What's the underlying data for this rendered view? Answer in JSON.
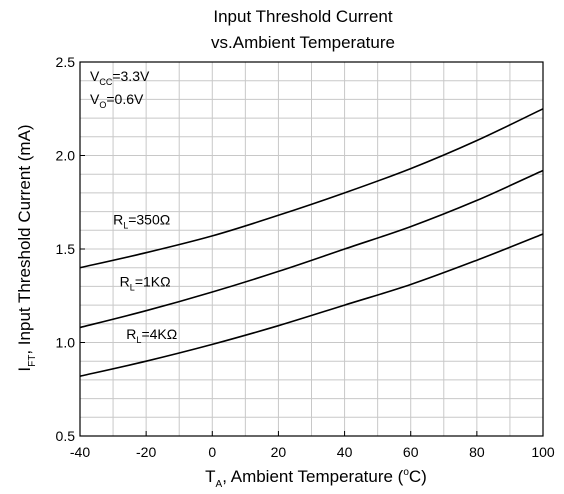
{
  "chart_data": {
    "type": "line",
    "title_line1": "Input Threshold Current",
    "title_line2": "vs.Ambient Temperature",
    "xlabel": {
      "main": "T",
      "sub": "A",
      "rest": ", Ambient Temperature (",
      "sup": "o",
      "end": "C)"
    },
    "ylabel": {
      "main": "I",
      "sub": "FT",
      "rest": ", Input Threshold Current (mA)"
    },
    "xlim": [
      -40,
      100
    ],
    "ylim": [
      0.5,
      2.5
    ],
    "xticks": [
      -40,
      -20,
      0,
      20,
      40,
      60,
      80,
      100
    ],
    "xtick_labels": [
      "-40",
      "-20",
      "0",
      "20",
      "40",
      "60",
      "80",
      "100"
    ],
    "yticks": [
      0.5,
      1.0,
      1.5,
      2.0,
      2.5
    ],
    "ytick_labels": [
      "0.5",
      "1.0",
      "1.5",
      "2.0",
      "2.5"
    ],
    "grid": true,
    "conditions": [
      {
        "main": "V",
        "sub": "CC",
        "rest": "=3.3V"
      },
      {
        "main": "V",
        "sub": "O",
        "rest": "=0.6V"
      }
    ],
    "series": [
      {
        "name": "RL=350Ω",
        "label": {
          "main": "R",
          "sub": "L",
          "rest": "=350Ω",
          "x": -30,
          "y": 1.63
        },
        "x": [
          -40,
          -20,
          0,
          20,
          40,
          60,
          80,
          100
        ],
        "y": [
          1.4,
          1.48,
          1.57,
          1.68,
          1.8,
          1.93,
          2.08,
          2.25
        ]
      },
      {
        "name": "RL=1KΩ",
        "label": {
          "main": "R",
          "sub": "L",
          "rest": "=1KΩ",
          "x": -28,
          "y": 1.3
        },
        "x": [
          -40,
          -20,
          0,
          20,
          40,
          60,
          80,
          100
        ],
        "y": [
          1.08,
          1.17,
          1.27,
          1.38,
          1.5,
          1.62,
          1.76,
          1.92
        ]
      },
      {
        "name": "RL=4KΩ",
        "label": {
          "main": "R",
          "sub": "L",
          "rest": "=4KΩ",
          "x": -26,
          "y": 1.02
        },
        "x": [
          -40,
          -20,
          0,
          20,
          40,
          60,
          80,
          100
        ],
        "y": [
          0.82,
          0.9,
          0.99,
          1.09,
          1.2,
          1.31,
          1.44,
          1.58
        ]
      }
    ]
  }
}
